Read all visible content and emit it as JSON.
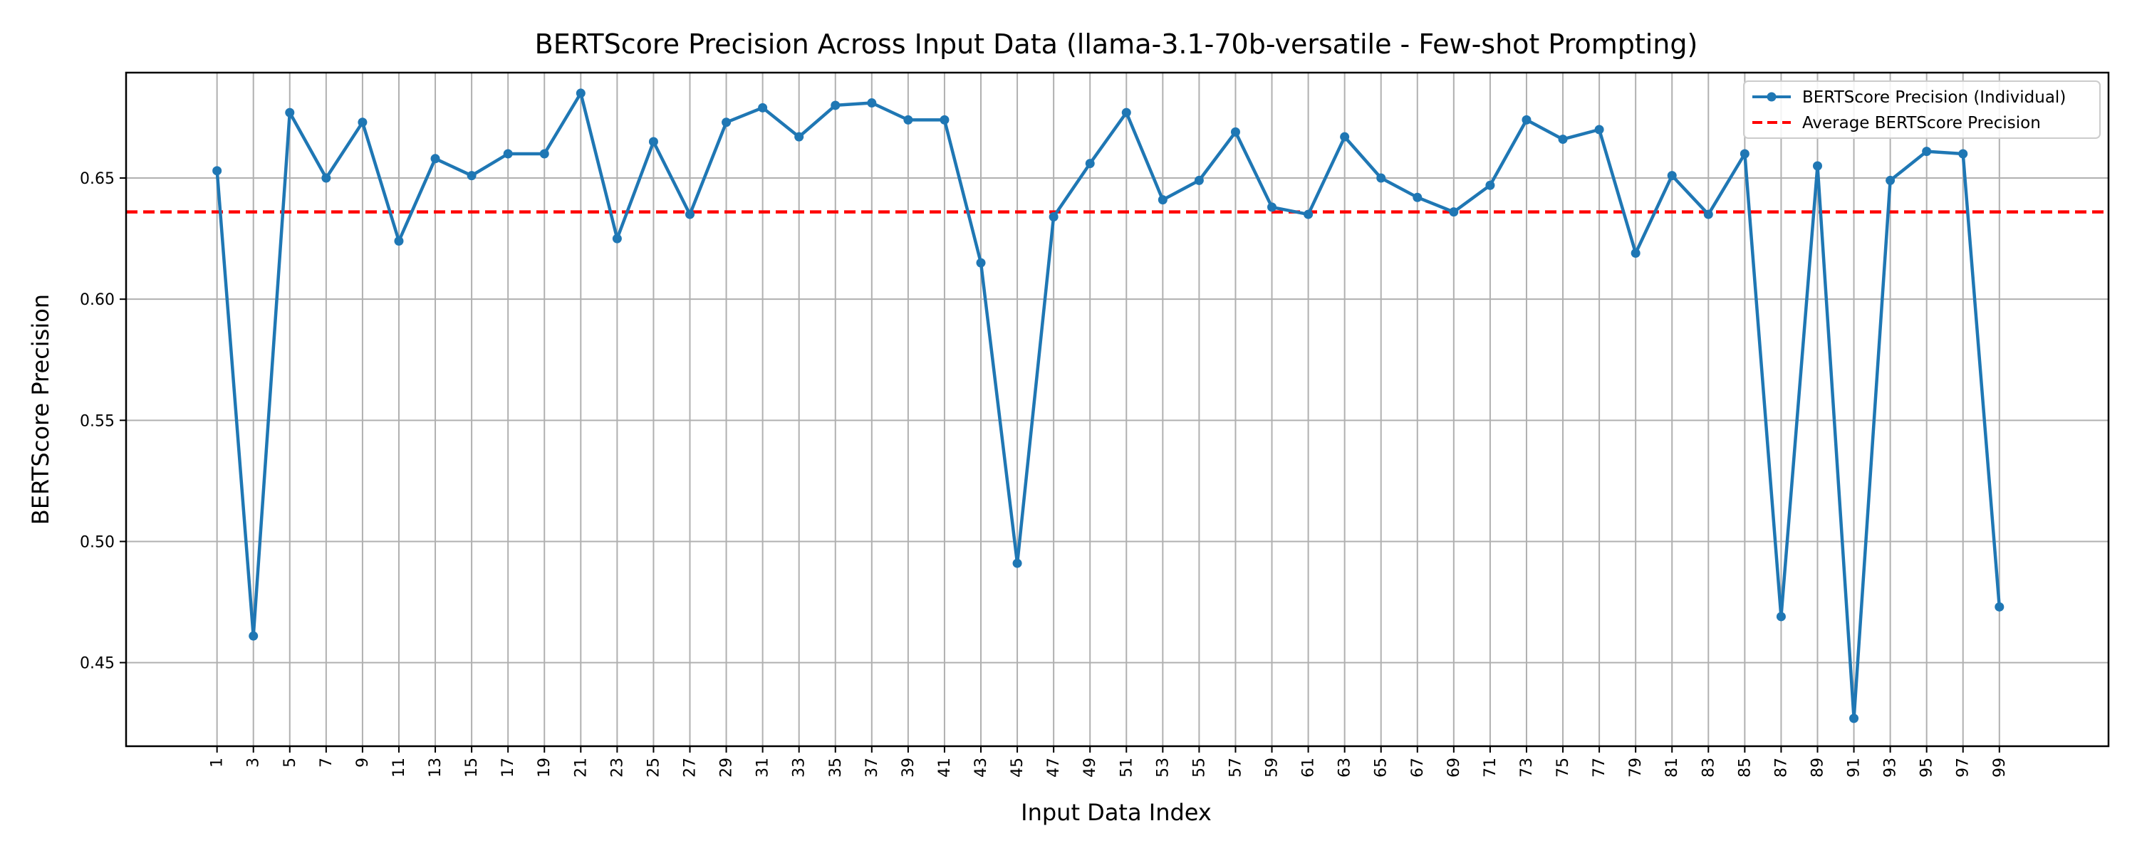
{
  "chart_data": {
    "type": "line",
    "title": "BERTScore Precision Across Input Data (llama-3.1-70b-versatile - Few-shot Prompting)",
    "xlabel": "Input Data Index",
    "ylabel": "BERTScore Precision",
    "xlim": [
      -4,
      105
    ],
    "ylim": [
      0.4155,
      0.6935
    ],
    "x": [
      1,
      3,
      5,
      7,
      9,
      11,
      13,
      15,
      17,
      19,
      21,
      23,
      25,
      27,
      29,
      31,
      33,
      35,
      37,
      39,
      41,
      43,
      45,
      47,
      49,
      51,
      53,
      55,
      57,
      59,
      61,
      63,
      65,
      67,
      69,
      71,
      73,
      75,
      77,
      79,
      81,
      83,
      85,
      87,
      89,
      91,
      93,
      95,
      97,
      99
    ],
    "x_tick_labels": [
      "1",
      "3",
      "5",
      "7",
      "9",
      "11",
      "13",
      "15",
      "17",
      "19",
      "21",
      "23",
      "25",
      "27",
      "29",
      "31",
      "33",
      "35",
      "37",
      "39",
      "41",
      "43",
      "45",
      "47",
      "49",
      "51",
      "53",
      "55",
      "57",
      "59",
      "61",
      "63",
      "65",
      "67",
      "69",
      "71",
      "73",
      "75",
      "77",
      "79",
      "81",
      "83",
      "85",
      "87",
      "89",
      "91",
      "93",
      "95",
      "97",
      "99"
    ],
    "y_ticks": [
      0.45,
      0.5,
      0.55,
      0.6,
      0.65
    ],
    "y_tick_labels": [
      "0.45",
      "0.50",
      "0.55",
      "0.60",
      "0.65"
    ],
    "grid": true,
    "legend_position": "upper-right",
    "series": [
      {
        "name": "BERTScore Precision (Individual)",
        "style": "line-with-markers",
        "color": "#1f77b4",
        "values": [
          0.653,
          0.461,
          0.677,
          0.65,
          0.673,
          0.624,
          0.658,
          0.651,
          0.66,
          0.66,
          0.685,
          0.625,
          0.665,
          0.635,
          0.673,
          0.679,
          0.667,
          0.68,
          0.681,
          0.674,
          0.674,
          0.615,
          0.491,
          0.634,
          0.656,
          0.677,
          0.641,
          0.649,
          0.669,
          0.638,
          0.635,
          0.667,
          0.65,
          0.642,
          0.636,
          0.647,
          0.674,
          0.666,
          0.67,
          0.619,
          0.651,
          0.635,
          0.66,
          0.469,
          0.655,
          0.427,
          0.649,
          0.661,
          0.66,
          0.473
        ]
      },
      {
        "name": "Average BERTScore Precision",
        "style": "dashed",
        "color": "#ff0000",
        "value": 0.636
      }
    ]
  },
  "colors": {
    "series_line": "#1f77b4",
    "average_line": "#ff0000",
    "grid": "#b0b0b0",
    "axes": "#000000"
  }
}
